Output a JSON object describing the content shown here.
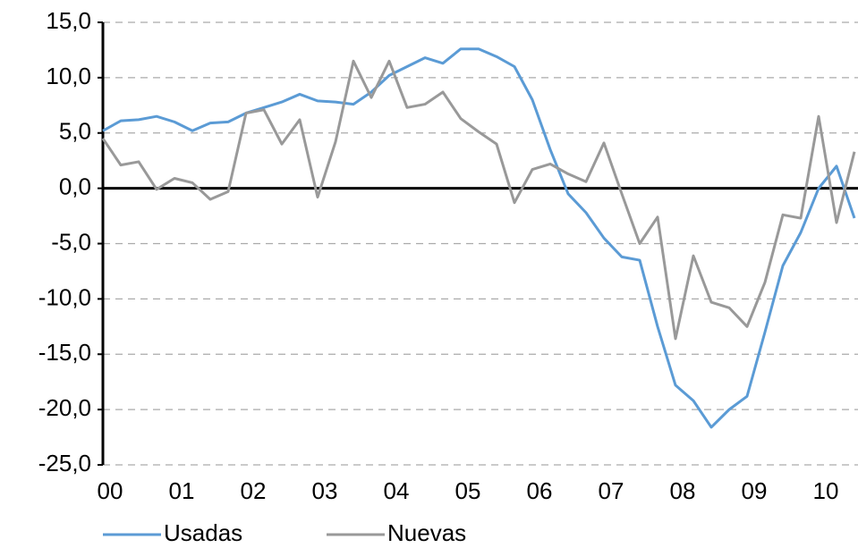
{
  "chart_data": {
    "type": "line",
    "categories": [
      "00",
      null,
      null,
      null,
      "01",
      null,
      null,
      null,
      "02",
      null,
      null,
      null,
      "03",
      null,
      null,
      null,
      "04",
      null,
      null,
      null,
      "05",
      null,
      null,
      null,
      "06",
      null,
      null,
      null,
      "07",
      null,
      null,
      null,
      "08",
      null,
      null,
      null,
      "09",
      null,
      null,
      null,
      "10",
      null,
      null
    ],
    "series": [
      {
        "name": "Usadas",
        "color": "#5b9bd5",
        "values": [
          5.2,
          6.1,
          6.2,
          6.5,
          6.0,
          5.2,
          5.9,
          6.0,
          6.8,
          7.3,
          7.8,
          8.5,
          7.9,
          7.8,
          7.6,
          8.7,
          10.2,
          11.0,
          11.8,
          11.3,
          12.6,
          12.6,
          11.9,
          11.0,
          8.0,
          3.5,
          -0.5,
          -2.2,
          -4.5,
          -6.2,
          -6.5,
          -12.5,
          -17.8,
          -19.2,
          -21.6,
          -20.0,
          -18.8,
          -13.0,
          -7.0,
          -4.0,
          0.0,
          2.0,
          -2.7
        ]
      },
      {
        "name": "Nuevas",
        "color": "#999999",
        "values": [
          4.5,
          2.1,
          2.4,
          -0.1,
          0.9,
          0.5,
          -1.0,
          -0.3,
          6.8,
          7.1,
          4.0,
          6.2,
          -0.8,
          4.2,
          11.5,
          8.2,
          11.5,
          7.3,
          7.6,
          8.7,
          6.3,
          5.1,
          4.0,
          -1.3,
          1.7,
          2.2,
          1.3,
          0.6,
          4.1,
          -0.5,
          -5.0,
          -2.6,
          -13.6,
          -6.1,
          -10.3,
          -10.8,
          -12.5,
          -8.5,
          -2.4,
          -2.7,
          6.5,
          -3.1,
          3.3
        ]
      }
    ],
    "ylim": [
      -25,
      15
    ],
    "yticks": [
      {
        "value": -25,
        "label": "-25,0"
      },
      {
        "value": -20,
        "label": "-20,0"
      },
      {
        "value": -15,
        "label": "-15,0"
      },
      {
        "value": -10,
        "label": "-10,0"
      },
      {
        "value": -5,
        "label": "-5,0"
      },
      {
        "value": 0,
        "label": "0,0"
      },
      {
        "value": 5,
        "label": "5,0"
      },
      {
        "value": 10,
        "label": "10,0"
      },
      {
        "value": 15,
        "label": "15,0"
      }
    ],
    "grid": true,
    "legend": "bottom"
  }
}
